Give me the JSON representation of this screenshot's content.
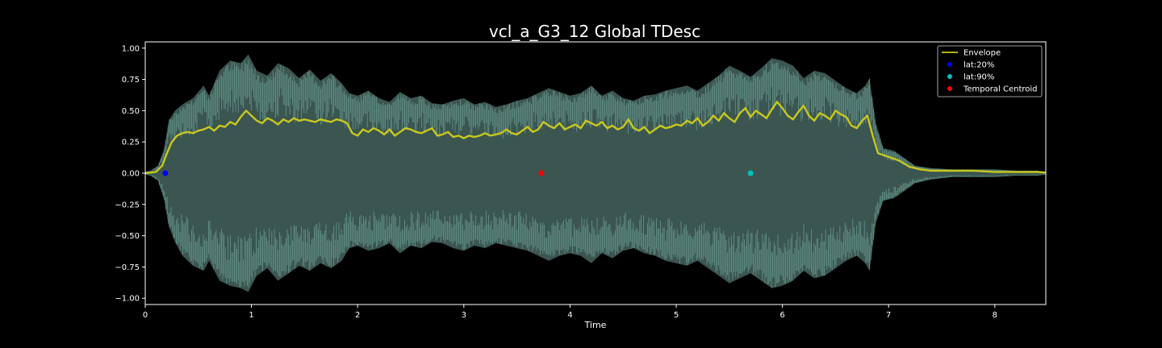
{
  "chart_data": {
    "type": "line",
    "title": "vcl_a_G3_12 Global TDesc",
    "xlabel": "Time",
    "ylabel": "",
    "xlim": [
      0,
      8.48
    ],
    "ylim": [
      -1.05,
      1.05
    ],
    "x_ticks": [
      "0",
      "1",
      "2",
      "3",
      "4",
      "5",
      "6",
      "7",
      "8"
    ],
    "y_ticks": [
      "1.00",
      "0.75",
      "0.50",
      "0.25",
      "0.00",
      "−0.25",
      "−0.50",
      "−0.75",
      "−1.00"
    ],
    "grid": false,
    "legend_position": "top-right",
    "colors": {
      "background": "#000000",
      "waveform_fill": "#3b5550",
      "waveform_peaks": "#6a9d92",
      "envelope": "#c8c81e",
      "axes": "#ffffff"
    },
    "waveform_peak": {
      "x": [
        0,
        0.05,
        0.12,
        0.18,
        0.22,
        0.28,
        0.35,
        0.45,
        0.55,
        0.6,
        0.7,
        0.8,
        0.9,
        0.97,
        1.05,
        1.15,
        1.25,
        1.35,
        1.45,
        1.55,
        1.65,
        1.75,
        1.85,
        1.92,
        2.0,
        2.1,
        2.2,
        2.3,
        2.4,
        2.5,
        2.6,
        2.7,
        2.8,
        2.9,
        3.0,
        3.1,
        3.2,
        3.3,
        3.4,
        3.5,
        3.6,
        3.7,
        3.8,
        3.9,
        4.0,
        4.1,
        4.2,
        4.3,
        4.4,
        4.5,
        4.6,
        4.7,
        4.8,
        4.9,
        5.0,
        5.1,
        5.2,
        5.3,
        5.4,
        5.5,
        5.6,
        5.7,
        5.8,
        5.9,
        6.0,
        6.1,
        6.2,
        6.3,
        6.4,
        6.5,
        6.6,
        6.7,
        6.78,
        6.82,
        6.88,
        6.95,
        7.05,
        7.15,
        7.25,
        7.4,
        7.6,
        7.8,
        8.0,
        8.2,
        8.4,
        8.48
      ],
      "upper": [
        0.01,
        0.02,
        0.06,
        0.2,
        0.42,
        0.5,
        0.55,
        0.6,
        0.7,
        0.62,
        0.82,
        0.9,
        0.88,
        0.95,
        0.82,
        0.78,
        0.88,
        0.84,
        0.76,
        0.83,
        0.74,
        0.8,
        0.72,
        0.64,
        0.62,
        0.66,
        0.6,
        0.57,
        0.65,
        0.6,
        0.62,
        0.56,
        0.55,
        0.58,
        0.6,
        0.55,
        0.57,
        0.53,
        0.55,
        0.58,
        0.6,
        0.64,
        0.68,
        0.65,
        0.62,
        0.64,
        0.7,
        0.62,
        0.66,
        0.6,
        0.58,
        0.62,
        0.63,
        0.66,
        0.68,
        0.7,
        0.66,
        0.72,
        0.78,
        0.86,
        0.82,
        0.77,
        0.84,
        0.92,
        0.9,
        0.86,
        0.76,
        0.82,
        0.8,
        0.74,
        0.68,
        0.64,
        0.7,
        0.76,
        0.4,
        0.2,
        0.18,
        0.12,
        0.06,
        0.04,
        0.03,
        0.03,
        0.03,
        0.02,
        0.02,
        0.01
      ],
      "lower": [
        -0.01,
        -0.02,
        -0.06,
        -0.22,
        -0.42,
        -0.55,
        -0.66,
        -0.74,
        -0.78,
        -0.7,
        -0.86,
        -0.9,
        -0.92,
        -0.95,
        -0.82,
        -0.76,
        -0.86,
        -0.8,
        -0.74,
        -0.78,
        -0.72,
        -0.76,
        -0.7,
        -0.6,
        -0.58,
        -0.62,
        -0.6,
        -0.56,
        -0.64,
        -0.58,
        -0.6,
        -0.55,
        -0.56,
        -0.6,
        -0.62,
        -0.58,
        -0.6,
        -0.56,
        -0.58,
        -0.6,
        -0.62,
        -0.66,
        -0.7,
        -0.66,
        -0.64,
        -0.66,
        -0.72,
        -0.64,
        -0.68,
        -0.62,
        -0.6,
        -0.64,
        -0.66,
        -0.7,
        -0.72,
        -0.74,
        -0.7,
        -0.76,
        -0.82,
        -0.88,
        -0.84,
        -0.8,
        -0.86,
        -0.92,
        -0.9,
        -0.86,
        -0.78,
        -0.84,
        -0.82,
        -0.76,
        -0.7,
        -0.66,
        -0.72,
        -0.78,
        -0.4,
        -0.22,
        -0.2,
        -0.14,
        -0.08,
        -0.05,
        -0.03,
        -0.03,
        -0.03,
        -0.02,
        -0.02,
        -0.01
      ]
    },
    "series": [
      {
        "name": "Envelope",
        "x": [
          0,
          0.1,
          0.16,
          0.2,
          0.25,
          0.3,
          0.35,
          0.4,
          0.45,
          0.5,
          0.55,
          0.6,
          0.65,
          0.7,
          0.75,
          0.8,
          0.85,
          0.9,
          0.95,
          1.0,
          1.05,
          1.1,
          1.15,
          1.2,
          1.25,
          1.3,
          1.35,
          1.4,
          1.45,
          1.5,
          1.55,
          1.6,
          1.65,
          1.7,
          1.75,
          1.8,
          1.85,
          1.9,
          1.95,
          2.0,
          2.05,
          2.1,
          2.15,
          2.2,
          2.25,
          2.3,
          2.35,
          2.4,
          2.45,
          2.5,
          2.55,
          2.6,
          2.65,
          2.7,
          2.75,
          2.8,
          2.85,
          2.9,
          2.95,
          3.0,
          3.05,
          3.1,
          3.15,
          3.2,
          3.25,
          3.3,
          3.35,
          3.4,
          3.45,
          3.5,
          3.55,
          3.6,
          3.65,
          3.7,
          3.75,
          3.8,
          3.85,
          3.9,
          3.95,
          4.0,
          4.05,
          4.1,
          4.15,
          4.2,
          4.25,
          4.3,
          4.35,
          4.4,
          4.45,
          4.5,
          4.55,
          4.6,
          4.65,
          4.7,
          4.75,
          4.8,
          4.85,
          4.9,
          4.95,
          5.0,
          5.05,
          5.1,
          5.15,
          5.2,
          5.25,
          5.3,
          5.35,
          5.4,
          5.45,
          5.5,
          5.55,
          5.6,
          5.65,
          5.7,
          5.75,
          5.8,
          5.85,
          5.9,
          5.95,
          6.0,
          6.05,
          6.1,
          6.15,
          6.2,
          6.25,
          6.3,
          6.35,
          6.4,
          6.45,
          6.5,
          6.55,
          6.6,
          6.65,
          6.7,
          6.75,
          6.8,
          6.85,
          6.9,
          7.0,
          7.1,
          7.2,
          7.3,
          7.4,
          7.6,
          7.8,
          8.0,
          8.2,
          8.4,
          8.48
        ],
        "y": [
          0.0,
          0.01,
          0.06,
          0.15,
          0.25,
          0.3,
          0.32,
          0.33,
          0.32,
          0.34,
          0.35,
          0.37,
          0.34,
          0.38,
          0.37,
          0.41,
          0.39,
          0.45,
          0.5,
          0.46,
          0.42,
          0.4,
          0.44,
          0.42,
          0.39,
          0.43,
          0.41,
          0.44,
          0.42,
          0.43,
          0.42,
          0.41,
          0.43,
          0.42,
          0.41,
          0.43,
          0.42,
          0.4,
          0.32,
          0.3,
          0.35,
          0.33,
          0.36,
          0.34,
          0.31,
          0.35,
          0.3,
          0.33,
          0.36,
          0.35,
          0.33,
          0.32,
          0.34,
          0.36,
          0.3,
          0.31,
          0.33,
          0.29,
          0.3,
          0.28,
          0.3,
          0.29,
          0.3,
          0.32,
          0.3,
          0.31,
          0.32,
          0.35,
          0.32,
          0.31,
          0.34,
          0.37,
          0.33,
          0.35,
          0.41,
          0.38,
          0.36,
          0.4,
          0.35,
          0.37,
          0.39,
          0.36,
          0.42,
          0.4,
          0.38,
          0.41,
          0.36,
          0.38,
          0.35,
          0.37,
          0.43,
          0.36,
          0.34,
          0.37,
          0.32,
          0.35,
          0.38,
          0.36,
          0.37,
          0.39,
          0.38,
          0.42,
          0.4,
          0.44,
          0.38,
          0.41,
          0.46,
          0.42,
          0.48,
          0.44,
          0.41,
          0.48,
          0.52,
          0.45,
          0.5,
          0.47,
          0.44,
          0.51,
          0.57,
          0.52,
          0.46,
          0.43,
          0.49,
          0.54,
          0.46,
          0.42,
          0.48,
          0.46,
          0.43,
          0.5,
          0.47,
          0.45,
          0.38,
          0.36,
          0.42,
          0.46,
          0.3,
          0.16,
          0.13,
          0.1,
          0.05,
          0.03,
          0.02,
          0.02,
          0.02,
          0.01,
          0.01,
          0.01,
          0.005
        ]
      }
    ],
    "markers": [
      {
        "name": "lat:20%",
        "x": 0.19,
        "y": 0.0,
        "color": "#0000ff"
      },
      {
        "name": "lat:90%",
        "x": 5.7,
        "y": 0.0,
        "color": "#00c0c0"
      },
      {
        "name": "Temporal Centroid",
        "x": 3.73,
        "y": 0.0,
        "color": "#ff0000"
      }
    ],
    "legend": [
      {
        "label": "Envelope",
        "kind": "line",
        "color": "#c8c81e"
      },
      {
        "label": "lat:20%",
        "kind": "dot",
        "color": "#0000ff"
      },
      {
        "label": "lat:90%",
        "kind": "dot",
        "color": "#00c0c0"
      },
      {
        "label": "Temporal Centroid",
        "kind": "dot",
        "color": "#ff0000"
      }
    ]
  }
}
